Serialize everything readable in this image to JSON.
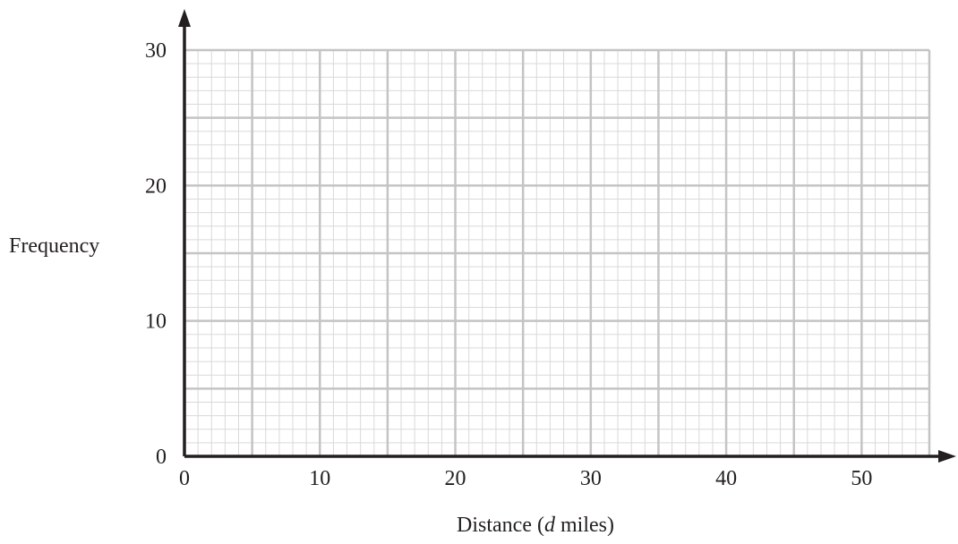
{
  "chart_data": {
    "type": "bar",
    "title": "",
    "xlabel": {
      "prefix": "Distance (",
      "variable": "d",
      "suffix": " miles)"
    },
    "ylabel": "Frequency",
    "xlim": [
      0,
      55
    ],
    "ylim": [
      0,
      30
    ],
    "x_ticks": [
      0,
      10,
      20,
      30,
      40,
      50
    ],
    "y_ticks": [
      0,
      10,
      20,
      30
    ],
    "x_ticks_text": [
      "0",
      "10",
      "20",
      "30",
      "40",
      "50"
    ],
    "y_ticks_text": [
      "0",
      "10",
      "20",
      "30"
    ],
    "grid": true,
    "grid_major_x": 5,
    "grid_major_y": 5,
    "grid_minor_x": 1,
    "grid_minor_y": 1,
    "series": [],
    "colors": {
      "axis": "#231f20",
      "grid_major": "#c4c4c4",
      "grid_minor": "#d9d9d9",
      "text": "#231f20"
    }
  }
}
